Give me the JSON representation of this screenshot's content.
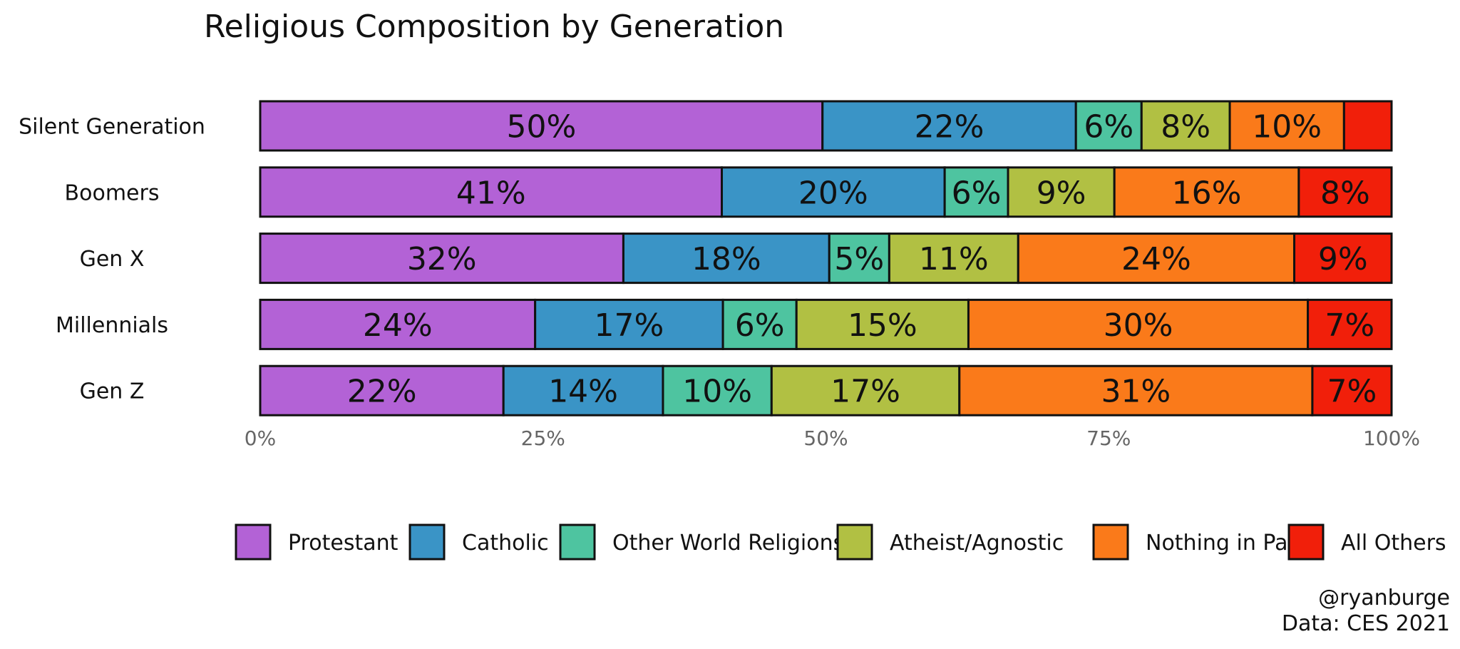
{
  "chart_data": {
    "type": "bar",
    "orientation": "horizontal",
    "stacked": true,
    "title": "Religious Composition by Generation",
    "xlabel": "",
    "ylabel": "",
    "xlim": [
      0,
      100
    ],
    "x_ticks": [
      "0%",
      "25%",
      "50%",
      "75%",
      "100%"
    ],
    "grid": false,
    "legend_position": "bottom",
    "categories": [
      "Silent Generation",
      "Boomers",
      "Gen X",
      "Millennials",
      "Gen Z"
    ],
    "series": [
      {
        "name": "Protestant",
        "color": "#B362D6",
        "values": [
          49.7,
          40.8,
          32.1,
          24.3,
          21.5
        ],
        "labels": [
          "50%",
          "41%",
          "32%",
          "24%",
          "22%"
        ]
      },
      {
        "name": "Catholic",
        "color": "#3A94C6",
        "values": [
          22.4,
          19.7,
          18.2,
          16.6,
          14.1
        ],
        "labels": [
          "22%",
          "20%",
          "18%",
          "17%",
          "14%"
        ]
      },
      {
        "name": "Other World Religions",
        "color": "#4EC4A0",
        "values": [
          5.8,
          5.6,
          5.3,
          6.5,
          9.6
        ],
        "labels": [
          "6%",
          "6%",
          "5%",
          "6%",
          "10%"
        ]
      },
      {
        "name": "Atheist/Agnostic",
        "color": "#B1C043",
        "values": [
          7.8,
          9.4,
          11.4,
          15.2,
          16.6
        ],
        "labels": [
          "8%",
          "9%",
          "11%",
          "15%",
          "17%"
        ]
      },
      {
        "name": "Nothing in Part.",
        "color": "#FA7A1A",
        "values": [
          10.1,
          16.3,
          24.4,
          30.0,
          31.2
        ],
        "labels": [
          "10%",
          "16%",
          "24%",
          "30%",
          "31%"
        ]
      },
      {
        "name": "All Others",
        "color": "#F11F0A",
        "values": [
          4.2,
          8.2,
          8.6,
          7.4,
          7.0
        ],
        "labels": [
          "",
          "8%",
          "9%",
          "7%",
          "7%"
        ]
      }
    ],
    "annotations": [
      "@ryanburge",
      "Data: CES 2021"
    ]
  }
}
